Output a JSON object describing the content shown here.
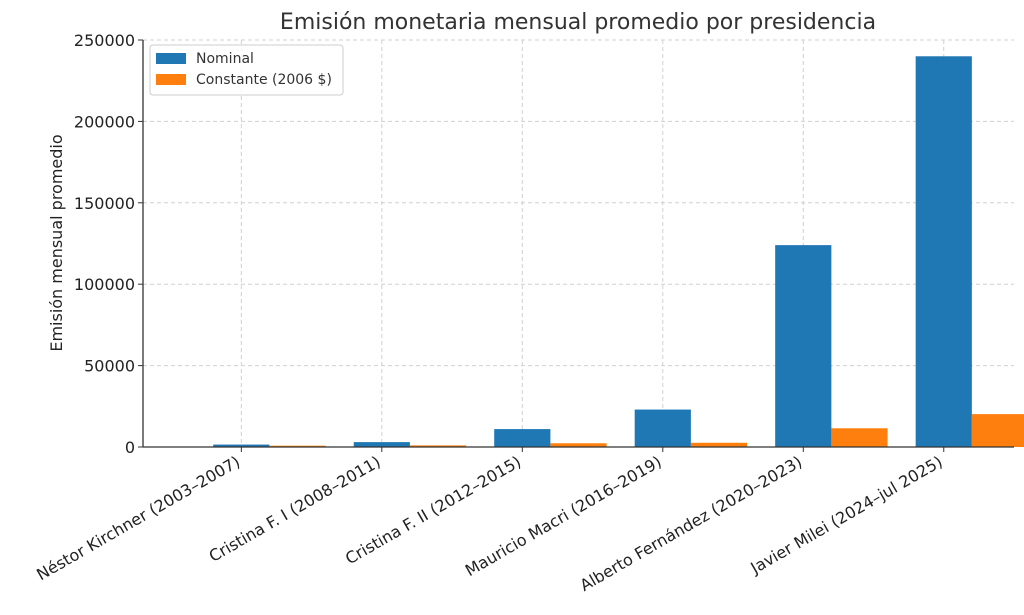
{
  "chart_data": {
    "type": "bar",
    "title": "Emisión monetaria mensual promedio por presidencia",
    "xlabel": "",
    "ylabel": "Emisión mensual promedio",
    "categories": [
      "Néstor Kirchner (2003–2007)",
      "Cristina F. I (2008–2011)",
      "Cristina F. II (2012–2015)",
      "Mauricio Macri (2016–2019)",
      "Alberto Fernández (2020–2023)",
      "Javier Milei (2024–jul 2025)"
    ],
    "series": [
      {
        "name": "Nominal",
        "color": "#1f77b4",
        "values": [
          1500,
          3000,
          11000,
          23000,
          124000,
          240000
        ]
      },
      {
        "name": "Constante (2006 $)",
        "color": "#ff7f0e",
        "values": [
          800,
          1000,
          2300,
          2600,
          11500,
          20200
        ]
      }
    ],
    "ylim": [
      0,
      250000
    ],
    "yticks": [
      0,
      50000,
      100000,
      150000,
      200000,
      250000
    ],
    "grid": true,
    "legend_position": "top-left"
  }
}
